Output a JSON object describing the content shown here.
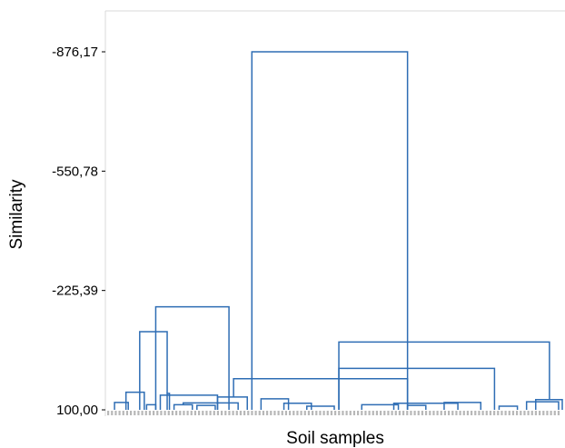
{
  "chart_data": {
    "type": "dendrogram",
    "xlabel": "Soil samples",
    "ylabel": "Similarity",
    "yticks": [
      {
        "value": -876.17,
        "label": "-876,17"
      },
      {
        "value": -550.78,
        "label": "-550,78"
      },
      {
        "value": -225.39,
        "label": "-225,39"
      },
      {
        "value": 100.0,
        "label": "100,00"
      }
    ],
    "ylim": [
      100.0,
      -900.0
    ],
    "color": "#2e6db4",
    "merges": [
      {
        "x1": 0.32,
        "x2": 0.66,
        "h": -876.17
      },
      {
        "x1": 0.11,
        "x2": 0.27,
        "h": -181.0
      },
      {
        "x1": 0.075,
        "x2": 0.135,
        "h": -113.0
      },
      {
        "x1": 0.12,
        "x2": 0.245,
        "h": 60.0
      },
      {
        "x1": 0.28,
        "x2": 0.66,
        "h": 15.0
      },
      {
        "x1": 0.51,
        "x2": 0.85,
        "h": -13.0
      },
      {
        "x1": 0.51,
        "x2": 0.97,
        "h": -85.0
      },
      {
        "x1": 0.045,
        "x2": 0.085,
        "h": 52.0
      },
      {
        "x1": 0.02,
        "x2": 0.05,
        "h": 80.0
      },
      {
        "x1": 0.17,
        "x2": 0.29,
        "h": 81.0
      },
      {
        "x1": 0.245,
        "x2": 0.31,
        "h": 65.0
      },
      {
        "x1": 0.39,
        "x2": 0.45,
        "h": 82.0
      },
      {
        "x1": 0.63,
        "x2": 0.77,
        "h": 82.0
      },
      {
        "x1": 0.92,
        "x2": 0.99,
        "h": 78.0
      },
      {
        "x1": 0.94,
        "x2": 0.998,
        "h": 72.0
      },
      {
        "x1": 0.34,
        "x2": 0.4,
        "h": 70.0
      },
      {
        "x1": 0.74,
        "x2": 0.82,
        "h": 80.0
      },
      {
        "x1": 0.56,
        "x2": 0.64,
        "h": 86.0
      },
      {
        "x1": 0.09,
        "x2": 0.11,
        "h": 86.0
      },
      {
        "x1": 0.135,
        "x2": 0.14,
        "h": 55.0
      },
      {
        "x1": 0.15,
        "x2": 0.19,
        "h": 86.0
      },
      {
        "x1": 0.2,
        "x2": 0.24,
        "h": 88.0
      },
      {
        "x1": 0.44,
        "x2": 0.5,
        "h": 90.0
      },
      {
        "x1": 0.66,
        "x2": 0.7,
        "h": 88.0
      },
      {
        "x1": 0.86,
        "x2": 0.9,
        "h": 90.0
      }
    ]
  }
}
